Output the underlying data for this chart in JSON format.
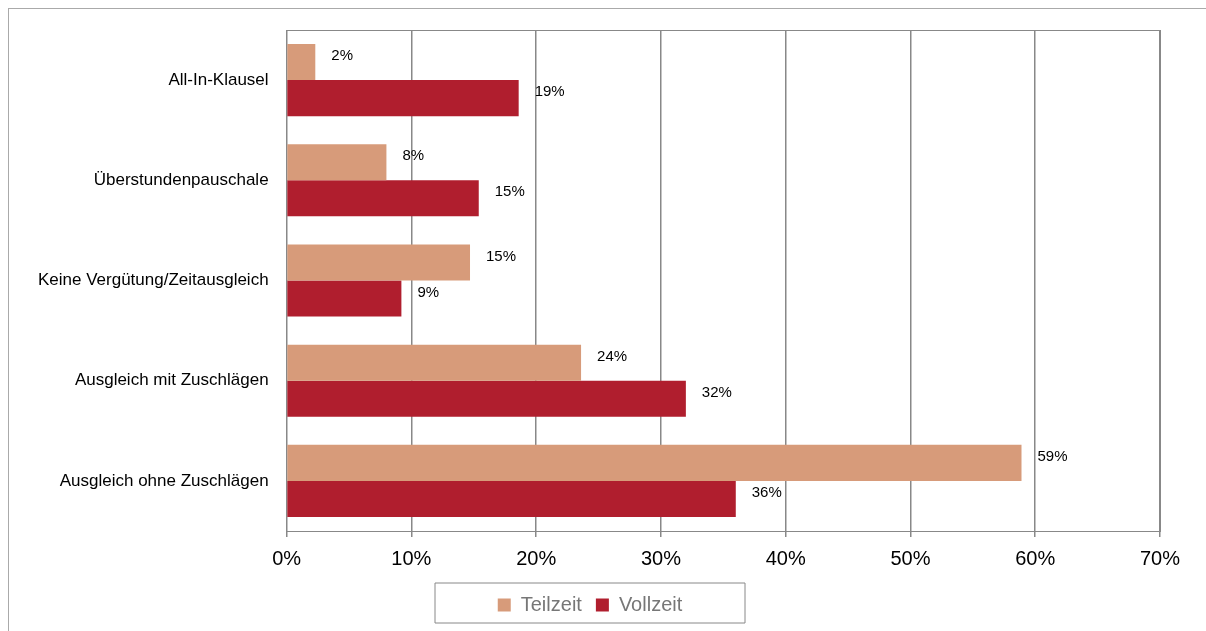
{
  "chart_data": {
    "type": "bar",
    "orientation": "horizontal",
    "categories": [
      "All-In-Klausel",
      "Überstundenpauschale",
      "Keine Vergütung/Zeitausgleich",
      "Ausgleich mit Zuschlägen",
      "Ausgleich ohne Zuschlägen"
    ],
    "series": [
      {
        "name": "Teilzeit",
        "color": "#d79b7a",
        "values": [
          2.3,
          8,
          14.7,
          23.6,
          58.9
        ],
        "value_labels": [
          "2%",
          "8%",
          "15%",
          "24%",
          "59%"
        ]
      },
      {
        "name": "Vollzeit",
        "color": "#b01e2e",
        "values": [
          18.6,
          15.4,
          9.2,
          32,
          36
        ],
        "value_labels": [
          "19%",
          "15%",
          "9%",
          "32%",
          "36%"
        ]
      }
    ],
    "xlim": [
      0,
      70
    ],
    "xticks": [
      {
        "value": 0,
        "label": "0%"
      },
      {
        "value": 10,
        "label": "10%"
      },
      {
        "value": 20,
        "label": "20%"
      },
      {
        "value": 30,
        "label": "30%"
      },
      {
        "value": 40,
        "label": "40%"
      },
      {
        "value": 50,
        "label": "50%"
      },
      {
        "value": 60,
        "label": "60%"
      },
      {
        "value": 70,
        "label": "70%"
      }
    ],
    "grid": "x",
    "legend": "bottom"
  }
}
